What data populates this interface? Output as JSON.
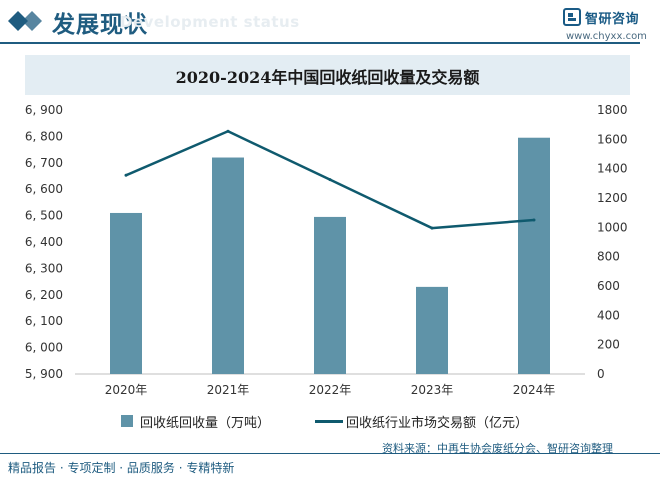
{
  "header": {
    "title": "发展现状",
    "subtitle": "Development status",
    "logo_name": "智研咨询",
    "logo_url": "www.chyxx.com"
  },
  "legend": {
    "bar_label": "回收纸回收量（万吨）",
    "line_label": "回收纸行业市场交易额（亿元）"
  },
  "source": "资料来源：中再生协会废纸分会、智研咨询整理",
  "footer": "精品报告 · 专项定制 · 品质服务 · 专精特新",
  "colors": {
    "bar": "#5f93a8",
    "line": "#0f5a6e",
    "brand": "#1f5c80"
  },
  "chart_data": {
    "type": "bar",
    "title": "2020-2024年中国回收纸回收量及交易额",
    "categories": [
      "2020年",
      "2021年",
      "2022年",
      "2023年",
      "2024年"
    ],
    "series": [
      {
        "name": "回收纸回收量（万吨）",
        "type": "bar",
        "axis": "left",
        "values": [
          6510,
          6720,
          6495,
          6230,
          6795
        ]
      },
      {
        "name": "回收纸行业市场交易额（亿元）",
        "type": "line",
        "axis": "right",
        "values": [
          1355,
          1655,
          1325,
          995,
          1050
        ]
      }
    ],
    "y_left": {
      "lim": [
        5900,
        6900
      ],
      "ticks": [
        5900,
        6000,
        6100,
        6200,
        6300,
        6400,
        6500,
        6600,
        6700,
        6800,
        6900
      ],
      "tick_labels": [
        "5, 900",
        "6, 000",
        "6, 100",
        "6, 200",
        "6, 300",
        "6, 400",
        "6, 500",
        "6, 600",
        "6, 700",
        "6, 800",
        "6, 900"
      ]
    },
    "y_right": {
      "lim": [
        0,
        1800
      ],
      "ticks": [
        0,
        200,
        400,
        600,
        800,
        1000,
        1200,
        1400,
        1600,
        1800
      ],
      "tick_labels": [
        "0",
        "200",
        "400",
        "600",
        "800",
        "1000",
        "1200",
        "1400",
        "1600",
        "1800"
      ]
    },
    "grid": false,
    "legend_position": "bottom"
  }
}
